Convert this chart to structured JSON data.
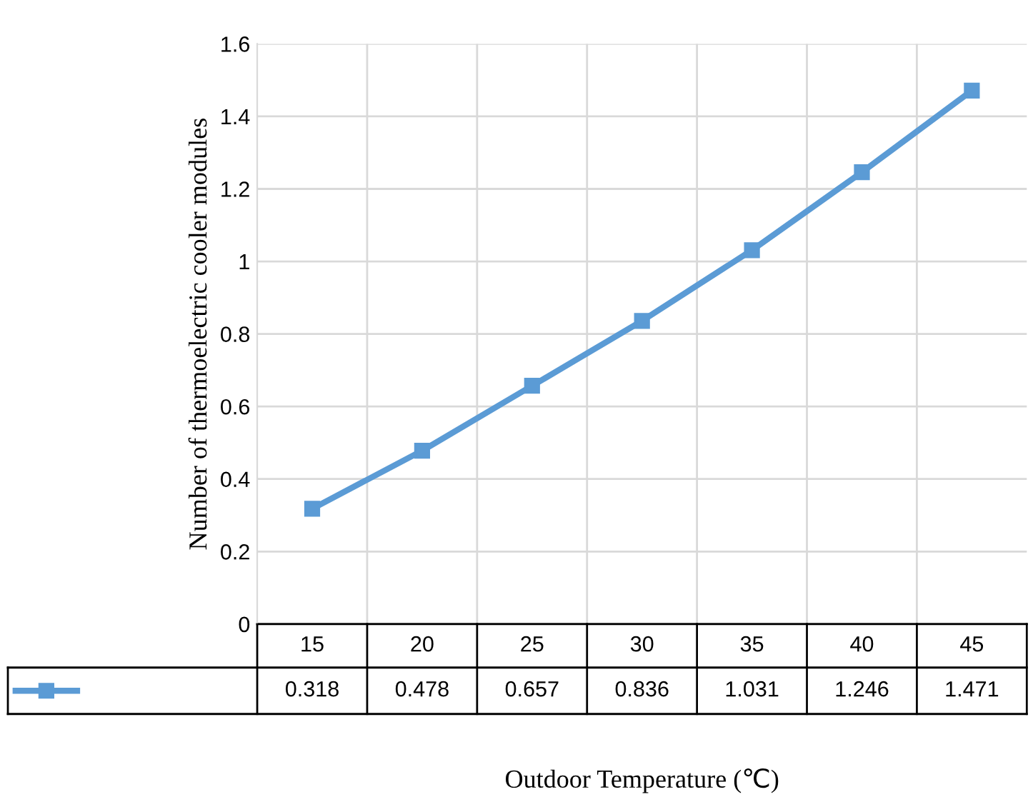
{
  "chart_data": {
    "type": "line",
    "xlabel": "Outdoor Temperature (℃)",
    "ylabel": "Number of thermoelectric cooler modules",
    "categories": [
      "15",
      "20",
      "25",
      "30",
      "35",
      "40",
      "45"
    ],
    "series": [
      {
        "color": "#5b9bd5",
        "values": [
          0.318,
          0.478,
          0.657,
          0.836,
          1.031,
          1.246,
          1.471
        ]
      }
    ],
    "ylim": [
      0,
      1.6
    ],
    "yticks": [
      0,
      0.2,
      0.4,
      0.6,
      0.8,
      1,
      1.2,
      1.4,
      1.6
    ],
    "grid": true,
    "marker": "square",
    "line_style": "solid",
    "data_labels": true
  }
}
